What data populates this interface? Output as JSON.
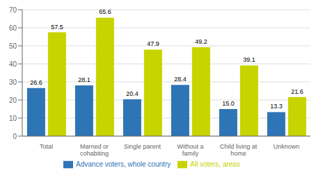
{
  "chart_data": {
    "type": "bar",
    "categories": [
      "Total",
      "Married or\ncohabiting",
      "Single parent",
      "Without a\nfamily",
      "Child living at\nhome",
      "Unknown"
    ],
    "series": [
      {
        "name": "Advance voters, whole country",
        "color": "#2e75b6",
        "values": [
          26.6,
          28.1,
          20.4,
          28.4,
          15.0,
          13.3
        ],
        "value_labels": [
          "26.6",
          "28.1",
          "20.4",
          "28.4",
          "15.0",
          "13.3"
        ]
      },
      {
        "name": "All voters, areas",
        "color": "#c8d400",
        "values": [
          57.5,
          65.6,
          47.9,
          49.2,
          39.1,
          21.6
        ]
      }
    ],
    "ylim": [
      0,
      70
    ],
    "yticks": [
      0,
      10,
      20,
      30,
      40,
      50,
      60,
      70
    ],
    "grid": true,
    "data_labels": true,
    "legend": "bottom"
  }
}
